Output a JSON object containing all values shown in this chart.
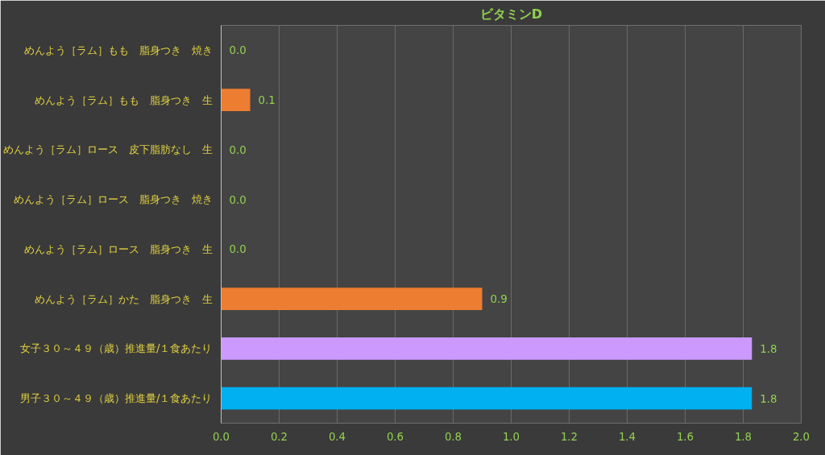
{
  "chart_data": {
    "type": "bar",
    "orientation": "horizontal",
    "title": "ビタミンD",
    "categories": [
      "めんよう［ラム］もも　脂身つき　焼き",
      "めんよう［ラム］もも　脂身つき　生",
      "めんよう［ラム］ロース　皮下脂肪なし　生",
      "めんよう［ラム］ロース　脂身つき　焼き",
      "めんよう［ラム］ロース　脂身つき　生",
      "めんよう［ラム］かた　脂身つき　生",
      "女子３０～４９（歳）推進量/１食あたり",
      "男子３０～４９（歳）推進量/１食あたり"
    ],
    "values": [
      0,
      0.1,
      0,
      0,
      0,
      0.9,
      1.83,
      1.83
    ],
    "value_labels": [
      "0.0",
      "0.1",
      "0.0",
      "0.0",
      "0.0",
      "0.9",
      "1.8",
      "1.8"
    ],
    "colors": [
      "#ed7d31",
      "#ed7d31",
      "#ed7d31",
      "#ed7d31",
      "#ed7d31",
      "#ed7d31",
      "#cc99ff",
      "#00b0f0"
    ],
    "xlim": [
      0,
      2.0
    ],
    "xticks": [
      "0.0",
      "0.2",
      "0.4",
      "0.6",
      "0.8",
      "1.0",
      "1.2",
      "1.4",
      "1.6",
      "1.8",
      "2.0"
    ],
    "grid": "x"
  }
}
